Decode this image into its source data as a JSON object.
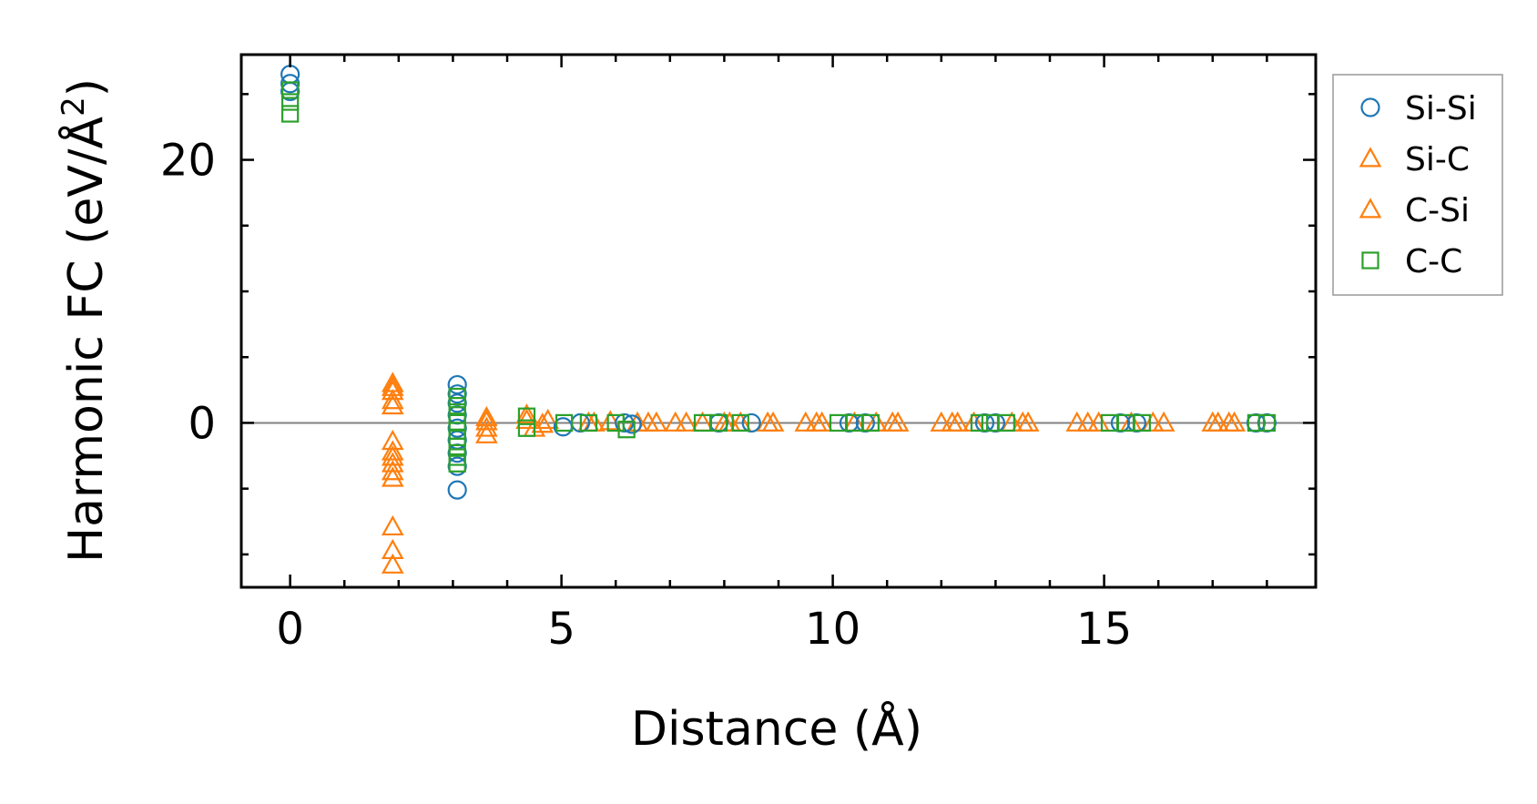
{
  "chart_data": {
    "type": "scatter",
    "xlabel": "Distance (Å)",
    "ylabel": "Harmonic FC (eV/Å²)",
    "ylabel_main": "Harmonic FC (eV/Å",
    "ylabel_sup": "2",
    "ylabel_tail": ")",
    "xlim": [
      -0.9,
      18.9
    ],
    "ylim": [
      -12.5,
      28
    ],
    "xticks": [
      0,
      5,
      10,
      15
    ],
    "yticks": [
      0,
      20
    ],
    "zero_line": true,
    "legend_position": "right, outside plot, top",
    "series": [
      {
        "name": "Si-Si",
        "marker": "circle",
        "color": "#1f77b4",
        "points": [
          [
            0,
            26.5
          ],
          [
            0,
            25.8
          ],
          [
            0,
            25.2
          ],
          [
            3.08,
            2.9
          ],
          [
            3.08,
            2.2
          ],
          [
            3.08,
            1.5
          ],
          [
            3.08,
            0.6
          ],
          [
            3.08,
            -0.4
          ],
          [
            3.08,
            -1.3
          ],
          [
            3.08,
            -2.3
          ],
          [
            3.08,
            -3.3
          ],
          [
            3.08,
            -5.1
          ],
          [
            5.03,
            -0.3
          ],
          [
            5.35,
            0.0
          ],
          [
            6.16,
            0.0
          ],
          [
            6.3,
            -0.1
          ],
          [
            7.9,
            0.0
          ],
          [
            8.5,
            0.0
          ],
          [
            10.3,
            0.0
          ],
          [
            10.6,
            0.0
          ],
          [
            12.8,
            0.0
          ],
          [
            13.0,
            0.0
          ],
          [
            15.3,
            0.0
          ],
          [
            15.6,
            0.0
          ],
          [
            17.8,
            0.0
          ],
          [
            18.0,
            0.0
          ]
        ]
      },
      {
        "name": "Si-C",
        "marker": "triangle",
        "color": "#ff7f0e",
        "points": [
          [
            1.89,
            3.0
          ],
          [
            1.89,
            2.4
          ],
          [
            1.89,
            1.7
          ],
          [
            1.89,
            -1.4
          ],
          [
            1.89,
            -2.2
          ],
          [
            1.89,
            -3.1
          ],
          [
            1.89,
            -4.2
          ],
          [
            1.89,
            -7.9
          ],
          [
            1.89,
            -9.7
          ],
          [
            1.89,
            -10.8
          ],
          [
            3.62,
            0.4
          ],
          [
            3.62,
            -0.4
          ],
          [
            3.62,
            -0.9
          ],
          [
            4.36,
            0.6
          ],
          [
            4.5,
            -0.4
          ],
          [
            4.75,
            0.2
          ],
          [
            5.5,
            0.0
          ],
          [
            5.9,
            0.1
          ],
          [
            6.4,
            0.0
          ],
          [
            6.75,
            0.0
          ],
          [
            7.1,
            0.0
          ],
          [
            7.6,
            0.0
          ],
          [
            8.0,
            0.0
          ],
          [
            8.3,
            0.0
          ],
          [
            8.8,
            0.0
          ],
          [
            9.5,
            0.0
          ],
          [
            9.8,
            0.0
          ],
          [
            10.4,
            0.0
          ],
          [
            10.8,
            0.0
          ],
          [
            11.2,
            0.0
          ],
          [
            12.0,
            0.0
          ],
          [
            12.3,
            0.0
          ],
          [
            12.6,
            0.0
          ],
          [
            13.3,
            0.0
          ],
          [
            13.6,
            0.0
          ],
          [
            14.5,
            0.0
          ],
          [
            14.9,
            0.0
          ],
          [
            15.5,
            0.0
          ],
          [
            15.9,
            0.0
          ],
          [
            17.0,
            0.0
          ],
          [
            17.3,
            0.0
          ]
        ]
      },
      {
        "name": "C-Si",
        "marker": "triangle",
        "color": "#ff7f0e",
        "points": [
          [
            1.89,
            2.7
          ],
          [
            1.89,
            1.3
          ],
          [
            1.89,
            -2.6
          ],
          [
            1.89,
            -3.7
          ],
          [
            3.62,
            0.1
          ],
          [
            4.36,
            0.2
          ],
          [
            4.65,
            -0.1
          ],
          [
            5.6,
            0.0
          ],
          [
            6.6,
            0.0
          ],
          [
            7.3,
            0.0
          ],
          [
            8.1,
            0.0
          ],
          [
            8.9,
            0.0
          ],
          [
            9.7,
            0.0
          ],
          [
            11.1,
            0.0
          ],
          [
            12.2,
            0.0
          ],
          [
            13.5,
            0.0
          ],
          [
            14.7,
            0.0
          ],
          [
            16.1,
            0.0
          ],
          [
            17.1,
            0.0
          ],
          [
            17.4,
            0.0
          ]
        ]
      },
      {
        "name": "C-C",
        "marker": "square",
        "color": "#2ca02c",
        "points": [
          [
            0,
            25.3
          ],
          [
            0,
            24.4
          ],
          [
            0,
            23.5
          ],
          [
            3.08,
            2.0
          ],
          [
            3.08,
            1.3
          ],
          [
            3.08,
            0.6
          ],
          [
            3.08,
            0.0
          ],
          [
            3.08,
            -0.6
          ],
          [
            3.08,
            -1.1
          ],
          [
            3.08,
            -1.8
          ],
          [
            3.08,
            -2.6
          ],
          [
            3.08,
            -3.1
          ],
          [
            4.36,
            0.5
          ],
          [
            4.36,
            -0.4
          ],
          [
            5.05,
            0.0
          ],
          [
            5.5,
            0.0
          ],
          [
            6.0,
            0.0
          ],
          [
            6.2,
            -0.5
          ],
          [
            7.6,
            0.0
          ],
          [
            7.9,
            0.0
          ],
          [
            8.3,
            0.0
          ],
          [
            10.1,
            0.0
          ],
          [
            10.4,
            0.0
          ],
          [
            10.7,
            0.0
          ],
          [
            12.7,
            0.0
          ],
          [
            12.9,
            0.0
          ],
          [
            13.2,
            0.0
          ],
          [
            15.1,
            0.0
          ],
          [
            15.4,
            0.0
          ],
          [
            15.7,
            0.0
          ],
          [
            17.8,
            0.0
          ],
          [
            18.0,
            0.0
          ]
        ]
      }
    ]
  },
  "legend": {
    "items": [
      {
        "label": "Si-Si",
        "marker": "circle",
        "color": "#1f77b4"
      },
      {
        "label": "Si-C",
        "marker": "triangle",
        "color": "#ff7f0e"
      },
      {
        "label": "C-Si",
        "marker": "triangle",
        "color": "#ff7f0e"
      },
      {
        "label": "C-C",
        "marker": "square",
        "color": "#2ca02c"
      }
    ]
  }
}
